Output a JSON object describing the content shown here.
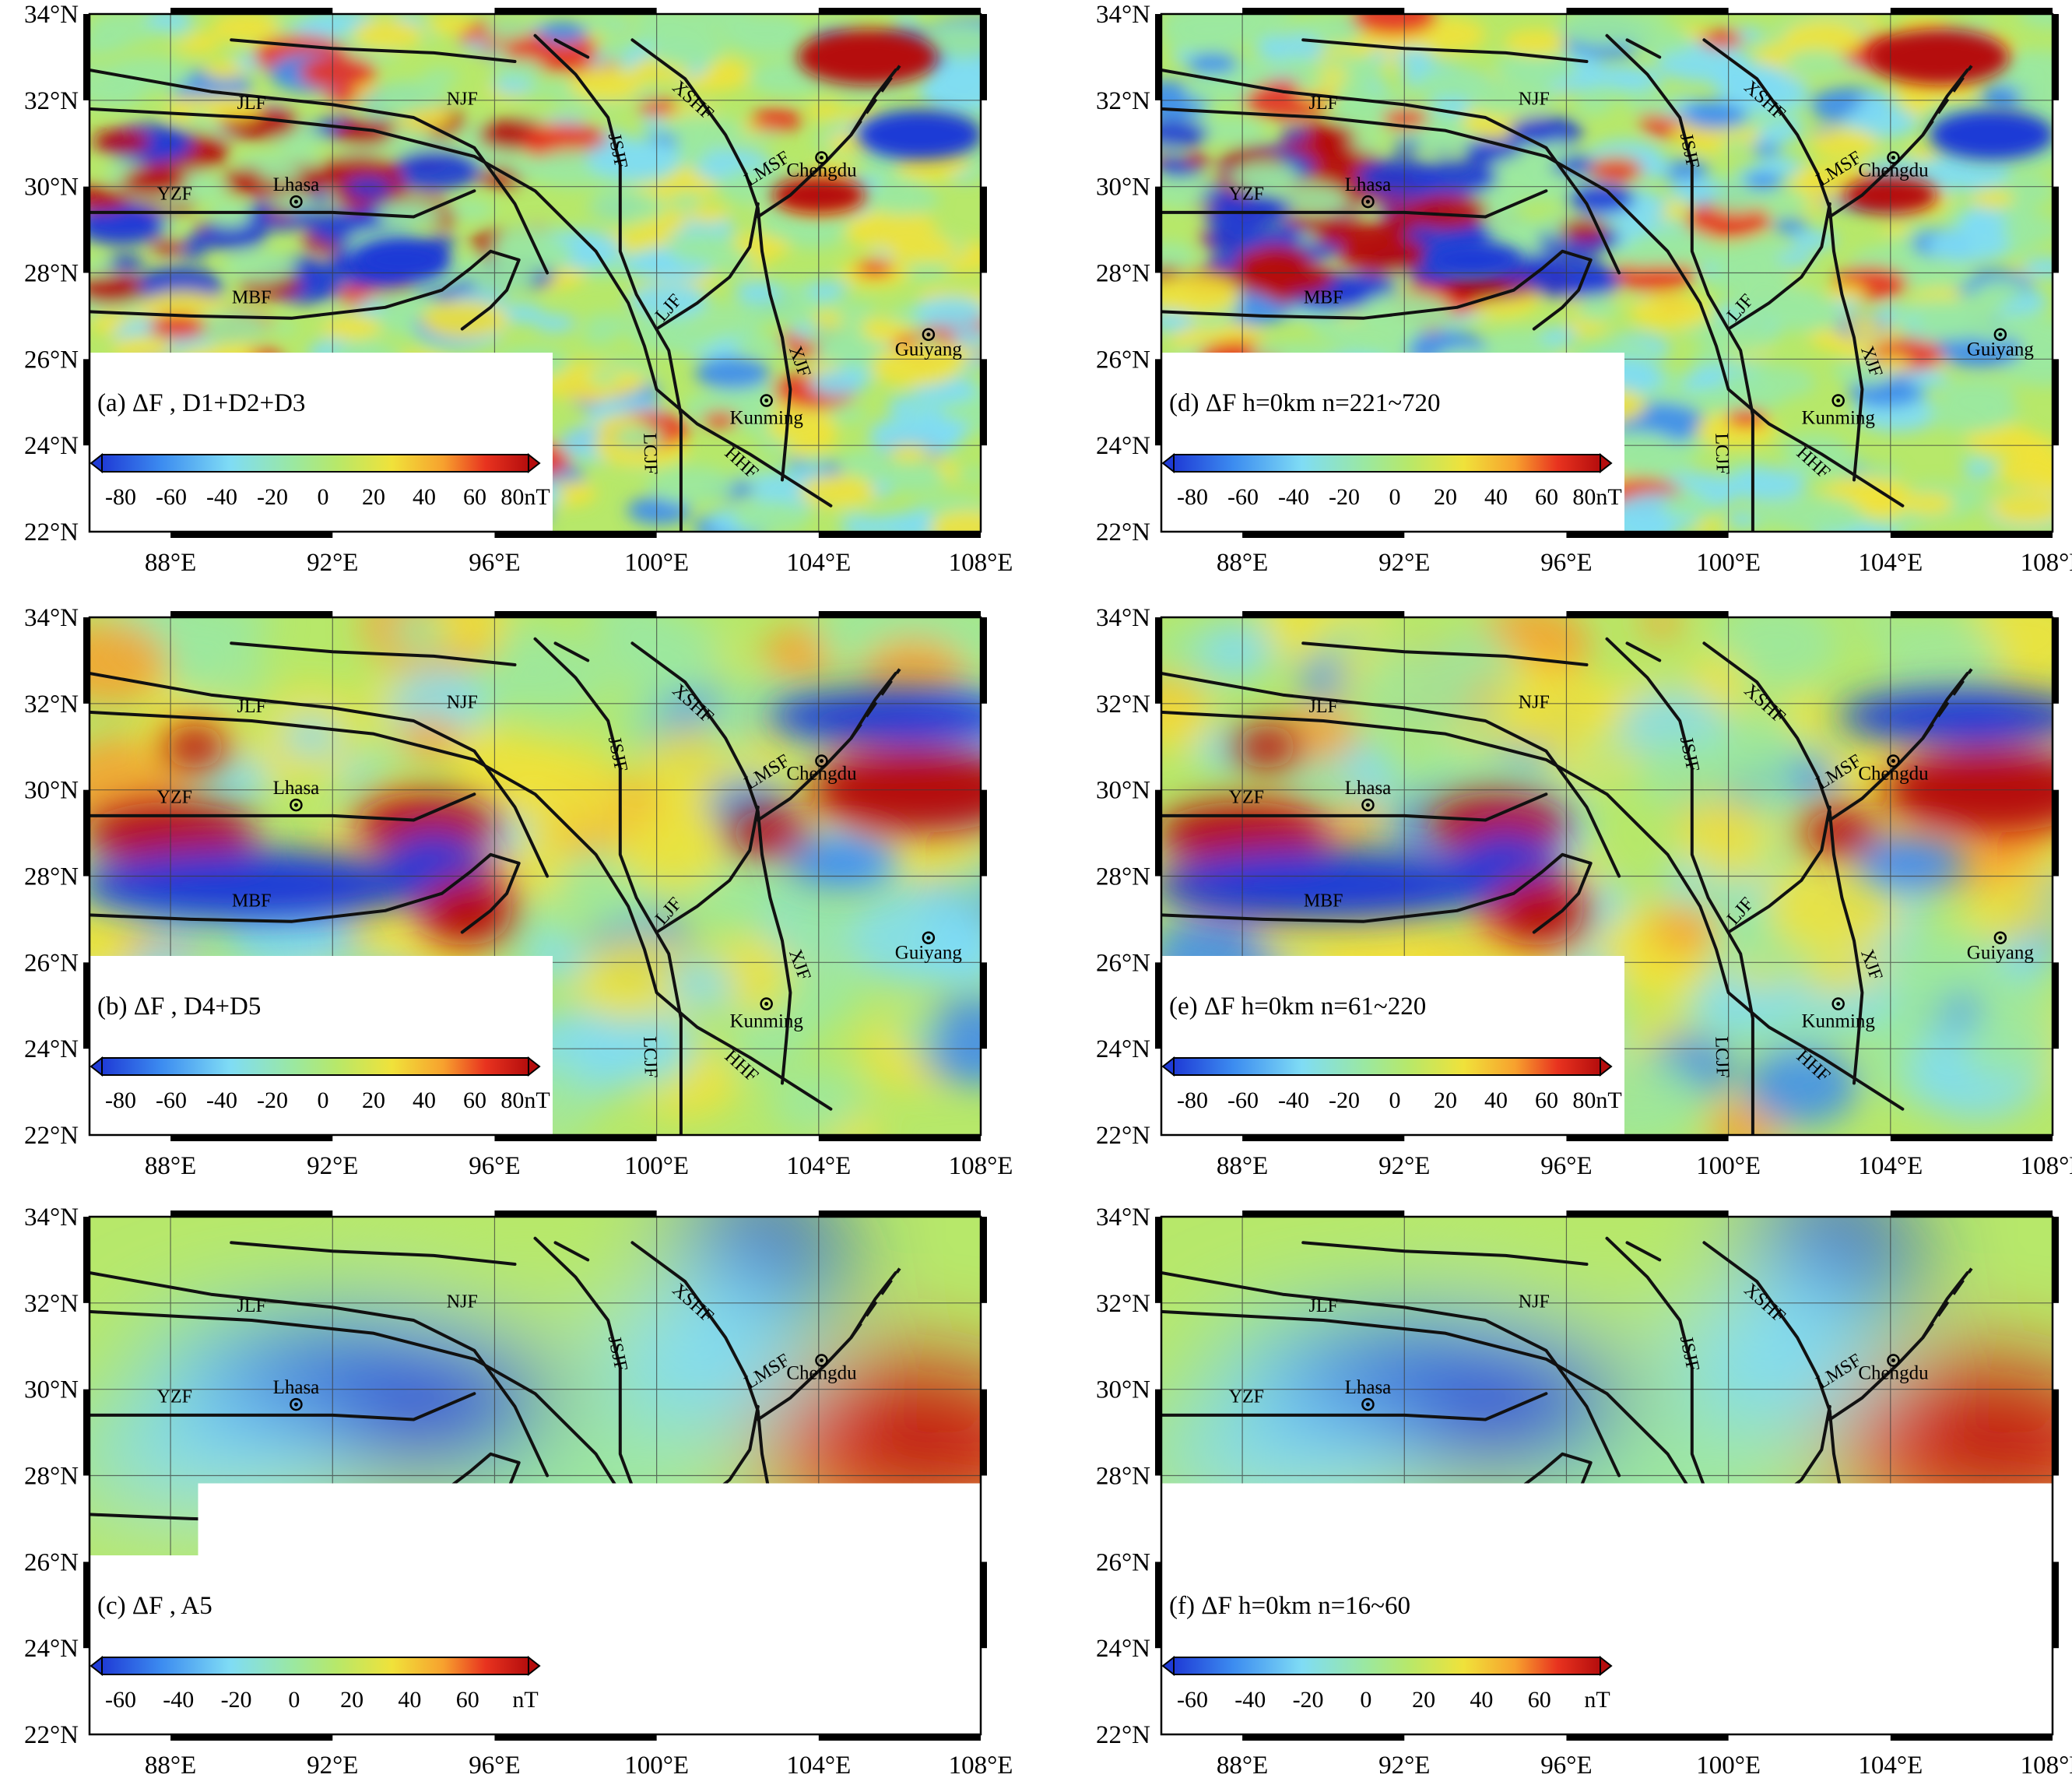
{
  "lat_labels": [
    "34°N",
    "32°N",
    "30°N",
    "28°N",
    "26°N",
    "24°N",
    "22°N"
  ],
  "lon_labels": [
    "88°E",
    "92°E",
    "96°E",
    "100°E",
    "104°E",
    "108°E"
  ],
  "lat_range": [
    22,
    34
  ],
  "lon_range": [
    86,
    108
  ],
  "faults": [
    "JLF",
    "NJF",
    "JSJF",
    "XSHF",
    "LMSF",
    "YZF",
    "MBF",
    "LJF",
    "XJF",
    "LCJF",
    "HHF"
  ],
  "cities": [
    {
      "name": "Lhasa",
      "lon": 91.1,
      "lat": 29.65
    },
    {
      "name": "Chengdu",
      "lon": 104.07,
      "lat": 30.67
    },
    {
      "name": "Guiyang",
      "lon": 106.71,
      "lat": 26.57
    },
    {
      "name": "Kunming",
      "lon": 102.71,
      "lat": 25.04
    }
  ],
  "colormap": [
    "#1f3bd6",
    "#3c8cf0",
    "#7fdcf5",
    "#9be8a0",
    "#b7e86a",
    "#f0e23a",
    "#f7a12e",
    "#e8331f",
    "#b50d0d"
  ],
  "panels": [
    {
      "id": "a",
      "label": "(a)",
      "title": "ΔF , D1+D2+D3",
      "colorbar_ticks": [
        "-80",
        "-60",
        "-40",
        "-20",
        "0",
        "20",
        "40",
        "60",
        "80nT"
      ],
      "texture": "fine"
    },
    {
      "id": "d",
      "label": "(d)",
      "title": "ΔF   h=0km   n=221~720",
      "colorbar_ticks": [
        "-80",
        "-60",
        "-40",
        "-20",
        "0",
        "20",
        "40",
        "60",
        "80nT"
      ],
      "texture": "fine"
    },
    {
      "id": "b",
      "label": "(b)",
      "title": "ΔF , D4+D5",
      "colorbar_ticks": [
        "-80",
        "-60",
        "-40",
        "-20",
        "0",
        "20",
        "40",
        "60",
        "80nT"
      ],
      "texture": "medium"
    },
    {
      "id": "e",
      "label": "(e)",
      "title": "ΔF   h=0km   n=61~220",
      "colorbar_ticks": [
        "-80",
        "-60",
        "-40",
        "-20",
        "0",
        "20",
        "40",
        "60",
        "80nT"
      ],
      "texture": "medium"
    },
    {
      "id": "c",
      "label": "(c)",
      "title": "ΔF , A5",
      "colorbar_ticks": [
        "-60",
        "-40",
        "-20",
        "0",
        "20",
        "40",
        "60",
        "nT"
      ],
      "texture": "smooth"
    },
    {
      "id": "f",
      "label": "(f)",
      "title": "ΔF   h=0km   n=16~60",
      "colorbar_ticks": [
        "-60",
        "-40",
        "-20",
        "0",
        "20",
        "40",
        "60",
        "nT"
      ],
      "texture": "smooth"
    }
  ]
}
